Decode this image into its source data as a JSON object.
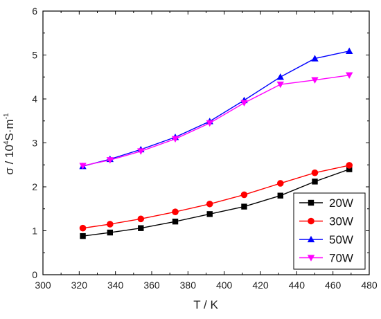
{
  "chart_data": {
    "type": "line",
    "xlabel": "T / K",
    "ylabel_main": "σ / 10",
    "ylabel_exp": "4",
    "ylabel_unit": "S·m",
    "ylabel_unit_exp": "-1",
    "xlim": [
      300,
      480
    ],
    "ylim": [
      0,
      6
    ],
    "xticks": [
      "300",
      "320",
      "340",
      "360",
      "380",
      "400",
      "420",
      "440",
      "460",
      "480"
    ],
    "yticks": [
      "0",
      "1",
      "2",
      "3",
      "4",
      "5",
      "6"
    ],
    "legend_position": "bottom-right",
    "grid": false,
    "x": [
      322,
      337,
      354,
      373,
      392,
      411,
      431,
      450,
      469
    ],
    "series": [
      {
        "name": "20W",
        "color": "#000000",
        "marker": "square",
        "values": [
          0.88,
          0.96,
          1.06,
          1.21,
          1.38,
          1.55,
          1.8,
          2.12,
          2.4
        ]
      },
      {
        "name": "30W",
        "color": "#ff0000",
        "marker": "circle",
        "values": [
          1.06,
          1.15,
          1.27,
          1.43,
          1.61,
          1.82,
          2.08,
          2.32,
          2.49
        ]
      },
      {
        "name": "50W",
        "color": "#0000ff",
        "marker": "triangle-up",
        "values": [
          2.47,
          2.63,
          2.85,
          3.13,
          3.49,
          3.97,
          4.5,
          4.92,
          5.09
        ]
      },
      {
        "name": "70W",
        "color": "#ff00ff",
        "marker": "triangle-down",
        "values": [
          2.48,
          2.61,
          2.81,
          3.09,
          3.45,
          3.91,
          4.33,
          4.43,
          4.54
        ]
      }
    ]
  }
}
